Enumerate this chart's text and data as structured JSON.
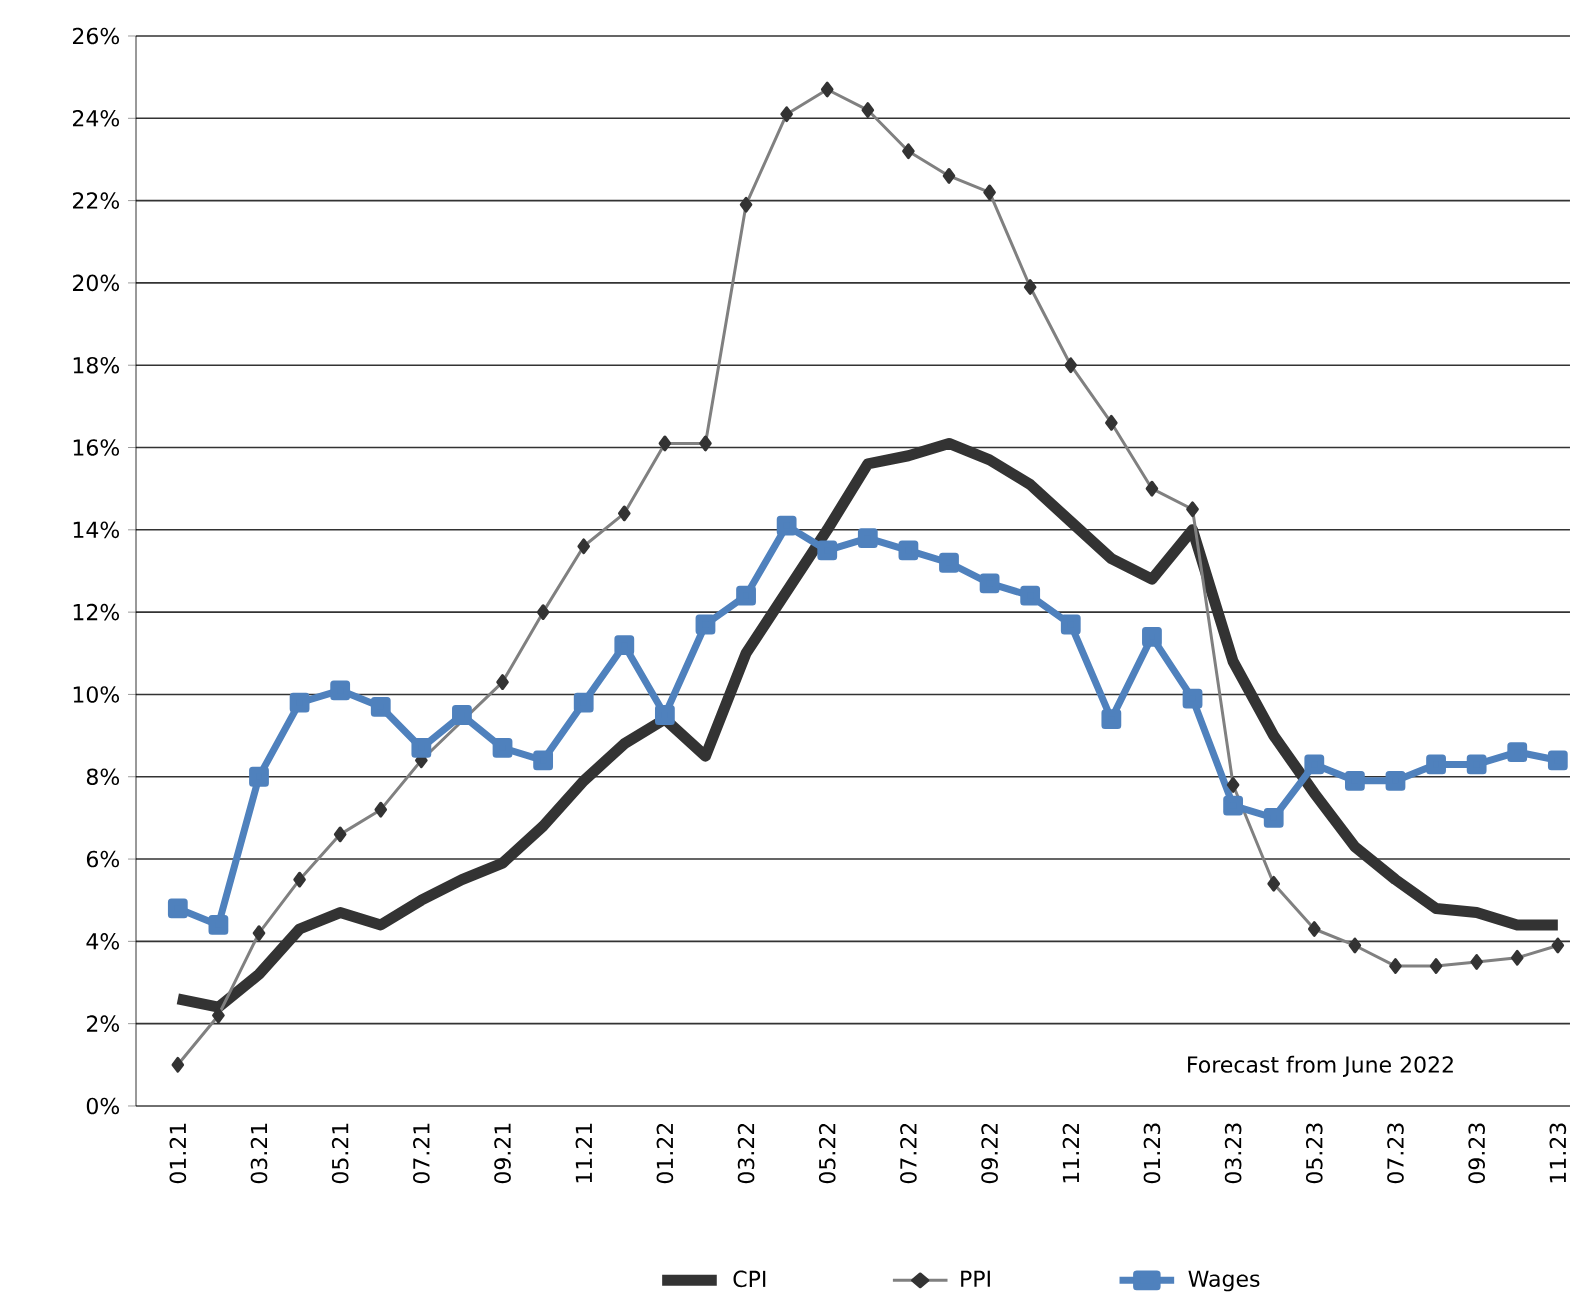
{
  "chart_data": {
    "type": "line",
    "categories": [
      "01.21",
      null,
      "03.21",
      null,
      "05.21",
      null,
      "07.21",
      null,
      "09.21",
      null,
      "11.21",
      null,
      "01.22",
      null,
      "03.22",
      null,
      "05.22",
      null,
      "07.22",
      null,
      "09.22",
      null,
      "11.22",
      null,
      "01.23",
      null,
      "03.23",
      null,
      "05.23",
      null,
      "07.23",
      null,
      "09.23",
      null,
      "11.23"
    ],
    "series": [
      {
        "name": "CPI",
        "color": "#333333",
        "marker": "none",
        "values": [
          2.6,
          2.4,
          3.2,
          4.3,
          4.7,
          4.4,
          5.0,
          5.5,
          5.9,
          6.8,
          7.9,
          8.8,
          9.4,
          8.5,
          11.0,
          12.5,
          14.0,
          15.6,
          15.8,
          16.1,
          15.7,
          15.1,
          14.2,
          13.3,
          12.8,
          14.0,
          10.8,
          9.0,
          7.6,
          6.3,
          5.5,
          4.8,
          4.7,
          4.4,
          4.4
        ]
      },
      {
        "name": "PPI",
        "color": "#808080",
        "marker": "diamond",
        "values": [
          1.0,
          2.2,
          4.2,
          5.5,
          6.6,
          7.2,
          8.4,
          null,
          10.3,
          12.0,
          13.6,
          14.4,
          16.1,
          16.1,
          21.9,
          24.1,
          24.7,
          24.2,
          23.2,
          22.6,
          22.2,
          19.9,
          18.0,
          16.6,
          15.0,
          14.5,
          7.8,
          5.4,
          4.3,
          3.9,
          3.4,
          3.4,
          3.5,
          3.6,
          3.9
        ]
      },
      {
        "name": "Wages",
        "color": "#4f81bd",
        "marker": "square",
        "values": [
          4.8,
          4.4,
          8.0,
          9.8,
          10.1,
          9.7,
          8.7,
          9.5,
          8.7,
          8.4,
          9.8,
          11.2,
          9.5,
          11.7,
          12.4,
          14.1,
          13.5,
          13.8,
          13.5,
          13.2,
          12.7,
          12.4,
          11.7,
          9.4,
          11.4,
          9.9,
          7.3,
          7.0,
          8.3,
          7.9,
          7.9,
          8.3,
          8.3,
          8.6,
          8.4
        ]
      }
    ],
    "ylim": [
      0,
      26
    ],
    "yticks": [
      {
        "value": 0,
        "label": "0%"
      },
      {
        "value": 2,
        "label": "2%"
      },
      {
        "value": 4,
        "label": "4%"
      },
      {
        "value": 6,
        "label": "6%"
      },
      {
        "value": 8,
        "label": "8%"
      },
      {
        "value": 10,
        "label": "10%"
      },
      {
        "value": 12,
        "label": "12%"
      },
      {
        "value": 14,
        "label": "14%"
      },
      {
        "value": 16,
        "label": "16%"
      },
      {
        "value": 18,
        "label": "18%"
      },
      {
        "value": 20,
        "label": "20%"
      },
      {
        "value": 22,
        "label": "22%"
      },
      {
        "value": 24,
        "label": "24%"
      },
      {
        "value": 26,
        "label": "26%"
      }
    ],
    "grid": "y",
    "legend": "bottom",
    "annotations": [
      "Forecast from June 2022"
    ]
  }
}
